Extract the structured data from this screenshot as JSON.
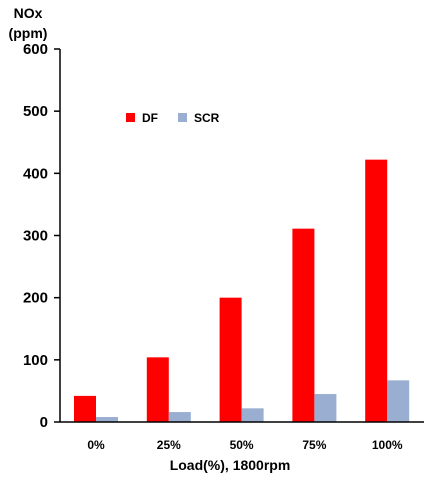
{
  "chart_data": {
    "type": "bar",
    "title": "",
    "ylabel_line1": "NOx",
    "ylabel_line2": "(ppm)",
    "xlabel": "Load(%), 1800rpm",
    "categories": [
      "0%",
      "25%",
      "50%",
      "75%",
      "100%"
    ],
    "series": [
      {
        "name": "DF",
        "color": "#ff0000",
        "values": [
          42,
          104,
          200,
          311,
          422
        ]
      },
      {
        "name": "SCR",
        "color": "#9aaed2",
        "values": [
          8,
          16,
          22,
          45,
          67
        ]
      }
    ],
    "ylim": [
      0,
      600
    ],
    "yticks": [
      0,
      100,
      200,
      300,
      400,
      500,
      600
    ],
    "grid": false,
    "legend_position": "top-left"
  }
}
